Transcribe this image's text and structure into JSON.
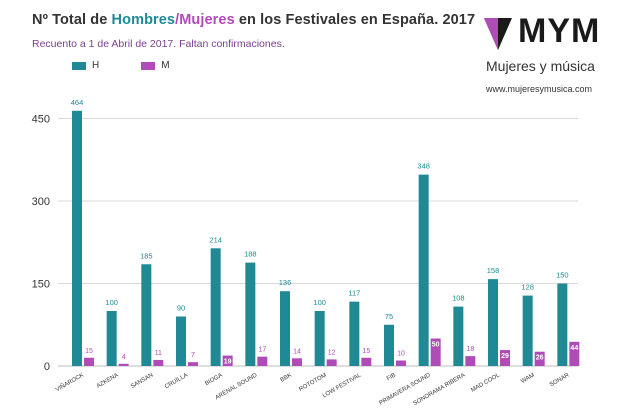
{
  "header": {
    "title_prefix": "Nº Total de ",
    "title_h": "Hombres",
    "title_sep": "/",
    "title_m": "Mujeres",
    "title_suffix": " en los Festivales en España. 2017",
    "subtitle": "Recuento a 1 de Abril de 2017. Faltan confirmaciones."
  },
  "logo": {
    "brand": "MYM",
    "tagline": "Mujeres y música",
    "url": "www.mujeresymusica.com"
  },
  "colors": {
    "h": "#1f8a95",
    "m": "#b04cb8",
    "grid": "#d9d9d9"
  },
  "chart_data": {
    "type": "bar",
    "categories": [
      "VIÑAROCK",
      "AZKENA",
      "SANSAN",
      "CRUÏLLA",
      "BIOGA",
      "ARENAL SOUND",
      "BBK",
      "ROTOTOM",
      "LOW FESTIVAL",
      "FIB",
      "PRIMAVERA SOUND",
      "SONORAMA RIBERA",
      "MAD COOL",
      "WAM",
      "SONAR"
    ],
    "series": [
      {
        "name": "H",
        "values": [
          464,
          100,
          185,
          90,
          214,
          188,
          136,
          100,
          117,
          75,
          348,
          108,
          158,
          128,
          150
        ]
      },
      {
        "name": "M",
        "values": [
          15,
          4,
          11,
          7,
          19,
          17,
          14,
          12,
          15,
          10,
          50,
          18,
          29,
          26,
          44
        ]
      }
    ],
    "yticks": [
      0,
      150,
      300,
      450
    ],
    "ylim": [
      0,
      480
    ],
    "grid": true,
    "legend": "top-left"
  }
}
